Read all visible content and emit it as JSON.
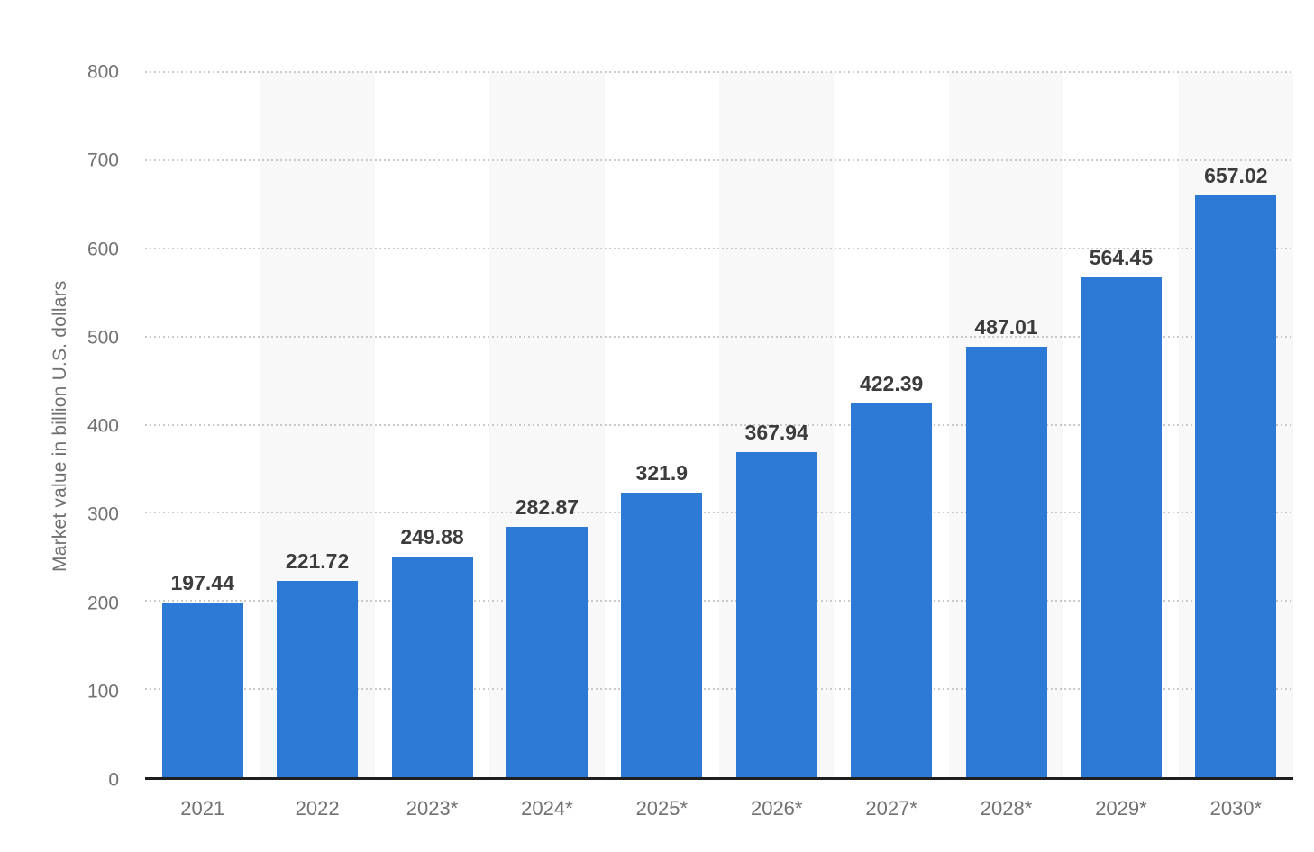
{
  "chart_data": {
    "type": "bar",
    "title": "",
    "xlabel": "",
    "ylabel": "Market value in billion U.S. dollars",
    "categories": [
      "2021",
      "2022",
      "2023*",
      "2024*",
      "2025*",
      "2026*",
      "2027*",
      "2028*",
      "2029*",
      "2030*"
    ],
    "values": [
      197.44,
      221.72,
      249.88,
      282.87,
      321.9,
      367.94,
      422.39,
      487.01,
      564.45,
      657.02
    ],
    "value_labels": [
      "197.44",
      "221.72",
      "249.88",
      "282.87",
      "321.9",
      "367.94",
      "422.39",
      "487.01",
      "564.45",
      "657.02"
    ],
    "ylim": [
      0,
      800
    ],
    "yticks": [
      0,
      100,
      200,
      300,
      400,
      500,
      600,
      700,
      800
    ],
    "grid": "horizontal-dotted",
    "legend": "none",
    "stripes": "alternating columns, even years shaded",
    "colors": {
      "bar": "#2c79d6",
      "stripe": "#f8f8f8",
      "grid": "#c9c9c9",
      "baseline": "#1f1f1f",
      "axis_text": "#717171",
      "value_label": "#3c3c3c"
    }
  }
}
